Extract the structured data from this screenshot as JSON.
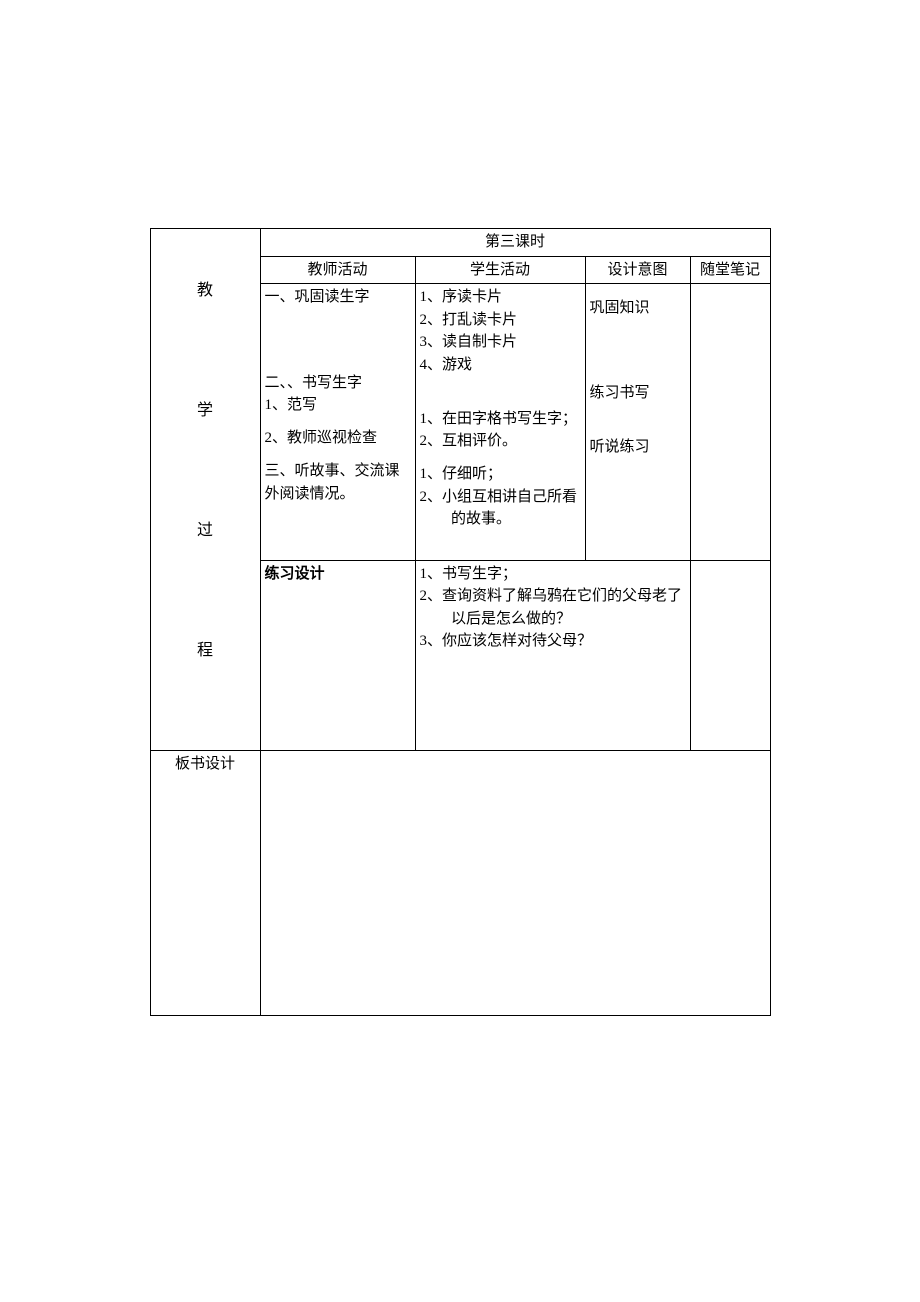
{
  "header": {
    "lesson": "第三课时",
    "teacher_col": "教师活动",
    "student_col": "学生活动",
    "intent_col": "设计意图",
    "note_col": "随堂笔记"
  },
  "left_label": {
    "c1": "教",
    "c2": "学",
    "c3": "过",
    "c4": "程"
  },
  "board_label": "板书设计",
  "section1": {
    "teacher": "一、巩固读生字",
    "student1": "1、序读卡片",
    "student2": "2、打乱读卡片",
    "student3": "3、读自制卡片",
    "student4": "4、游戏",
    "intent": "巩固知识"
  },
  "section2": {
    "teacher_title": "二、、书写生字",
    "teacher_l1": "1、范写",
    "teacher_l2": "2、教师巡视检查",
    "student1": "1、在田字格书写生字；",
    "student2": "2、互相评价。",
    "intent": "练习书写"
  },
  "section3": {
    "teacher": "三、听故事、交流课外阅读情况。",
    "student1": "1、仔细听；",
    "student2": "2、小组互相讲自己所看的故事。",
    "intent": "听说练习"
  },
  "practice": {
    "label": "练习设计",
    "item1": "1、书写生字；",
    "item2": "2、查询资料了解乌鸦在它们的父母老了以后是怎么做的？",
    "item3": "3、你应该怎样对待父母？"
  }
}
